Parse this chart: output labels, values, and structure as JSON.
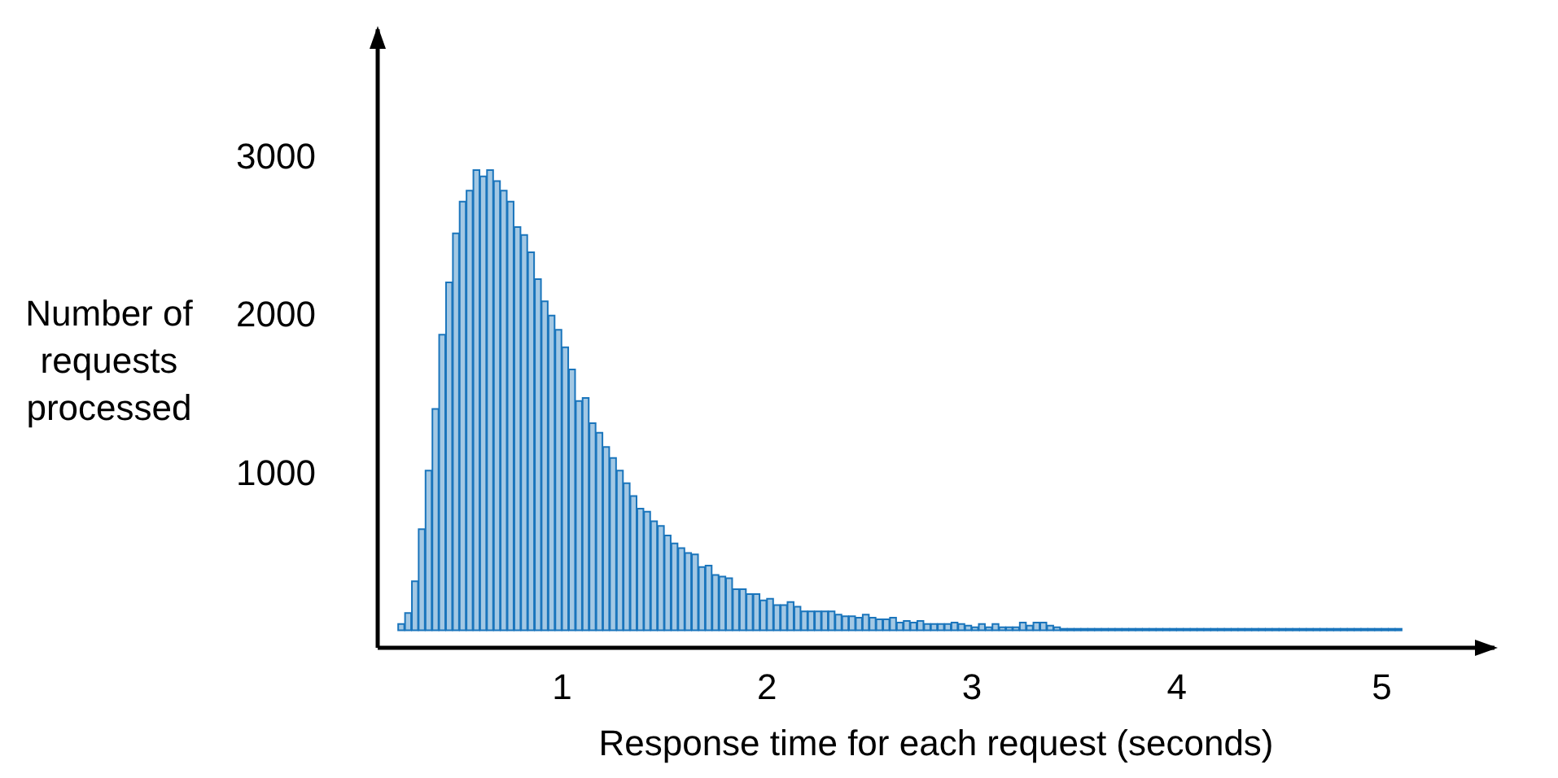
{
  "chart_data": {
    "type": "histogram",
    "xlabel": "Response time for each request (seconds)",
    "ylabel": "Number of requests processed",
    "color": "#1a75bc",
    "xlim": [
      0.1,
      5.55
    ],
    "xticks": [
      1,
      2,
      3,
      4,
      5
    ],
    "ylim": [
      -110,
      3800
    ],
    "yticks": [
      1000,
      2000,
      3000
    ],
    "grid": false,
    "legend": false,
    "bins": [
      0.2,
      0.233,
      0.267,
      0.3,
      0.333,
      0.367,
      0.4,
      0.433,
      0.467,
      0.5,
      0.533,
      0.567,
      0.6,
      0.633,
      0.667,
      0.7,
      0.733,
      0.767,
      0.8,
      0.833,
      0.867,
      0.9,
      0.933,
      0.967,
      1.0,
      1.033,
      1.067,
      1.1,
      1.133,
      1.167,
      1.2,
      1.233,
      1.267,
      1.3,
      1.333,
      1.367,
      1.4,
      1.433,
      1.467,
      1.5,
      1.533,
      1.567,
      1.6,
      1.633,
      1.667,
      1.7,
      1.733,
      1.767,
      1.8,
      1.833,
      1.867,
      1.9,
      1.933,
      1.967,
      2.0,
      2.033,
      2.067,
      2.1,
      2.133,
      2.167,
      2.2,
      2.233,
      2.267,
      2.3,
      2.333,
      2.367,
      2.4,
      2.433,
      2.467,
      2.5,
      2.533,
      2.567,
      2.6,
      2.633,
      2.667,
      2.7,
      2.733,
      2.767,
      2.8,
      2.833,
      2.867,
      2.9,
      2.933,
      2.967,
      3.0,
      3.033,
      3.067,
      3.1,
      3.133,
      3.167,
      3.2,
      3.233,
      3.267,
      3.3,
      3.333,
      3.367,
      3.4,
      3.433,
      3.467,
      3.5,
      3.533,
      3.567,
      3.6,
      3.633,
      3.667,
      3.7,
      3.733,
      3.767,
      3.8,
      3.833,
      3.867,
      3.9,
      3.933,
      3.967,
      4.0,
      4.033,
      4.067,
      4.1,
      4.133,
      4.167,
      4.2,
      4.233,
      4.267,
      4.3,
      4.333,
      4.367,
      4.4,
      4.433,
      4.467,
      4.5,
      4.533,
      4.567,
      4.6,
      4.633,
      4.667,
      4.7,
      4.733,
      4.767,
      4.8,
      4.833,
      4.867,
      4.9,
      4.933,
      4.967,
      5.0,
      5.033,
      5.067,
      5.1
    ],
    "values": [
      40,
      110,
      310,
      640,
      1010,
      1400,
      1870,
      2200,
      2510,
      2710,
      2780,
      2910,
      2870,
      2910,
      2840,
      2780,
      2710,
      2550,
      2500,
      2390,
      2220,
      2080,
      1990,
      1900,
      1790,
      1650,
      1450,
      1470,
      1310,
      1250,
      1160,
      1090,
      1010,
      930,
      850,
      770,
      750,
      690,
      660,
      600,
      550,
      520,
      490,
      480,
      400,
      410,
      350,
      340,
      330,
      260,
      260,
      230,
      230,
      190,
      200,
      160,
      160,
      180,
      150,
      120,
      120,
      120,
      120,
      120,
      100,
      90,
      90,
      80,
      100,
      80,
      70,
      70,
      80,
      50,
      60,
      50,
      60,
      40,
      40,
      40,
      40,
      50,
      40,
      30,
      20,
      40,
      20,
      40,
      20,
      20,
      20,
      50,
      30,
      50,
      50,
      30,
      20,
      10,
      10,
      10,
      10,
      10,
      10,
      10,
      10,
      10,
      10,
      10,
      10,
      10,
      10,
      10,
      10,
      10,
      10,
      10,
      10,
      10,
      10,
      10,
      10,
      10,
      10,
      10,
      10,
      10,
      10,
      10,
      10,
      10,
      10,
      10,
      10,
      10,
      10,
      10,
      10,
      10,
      10,
      10,
      10,
      10,
      10,
      10,
      10,
      10,
      10
    ]
  }
}
